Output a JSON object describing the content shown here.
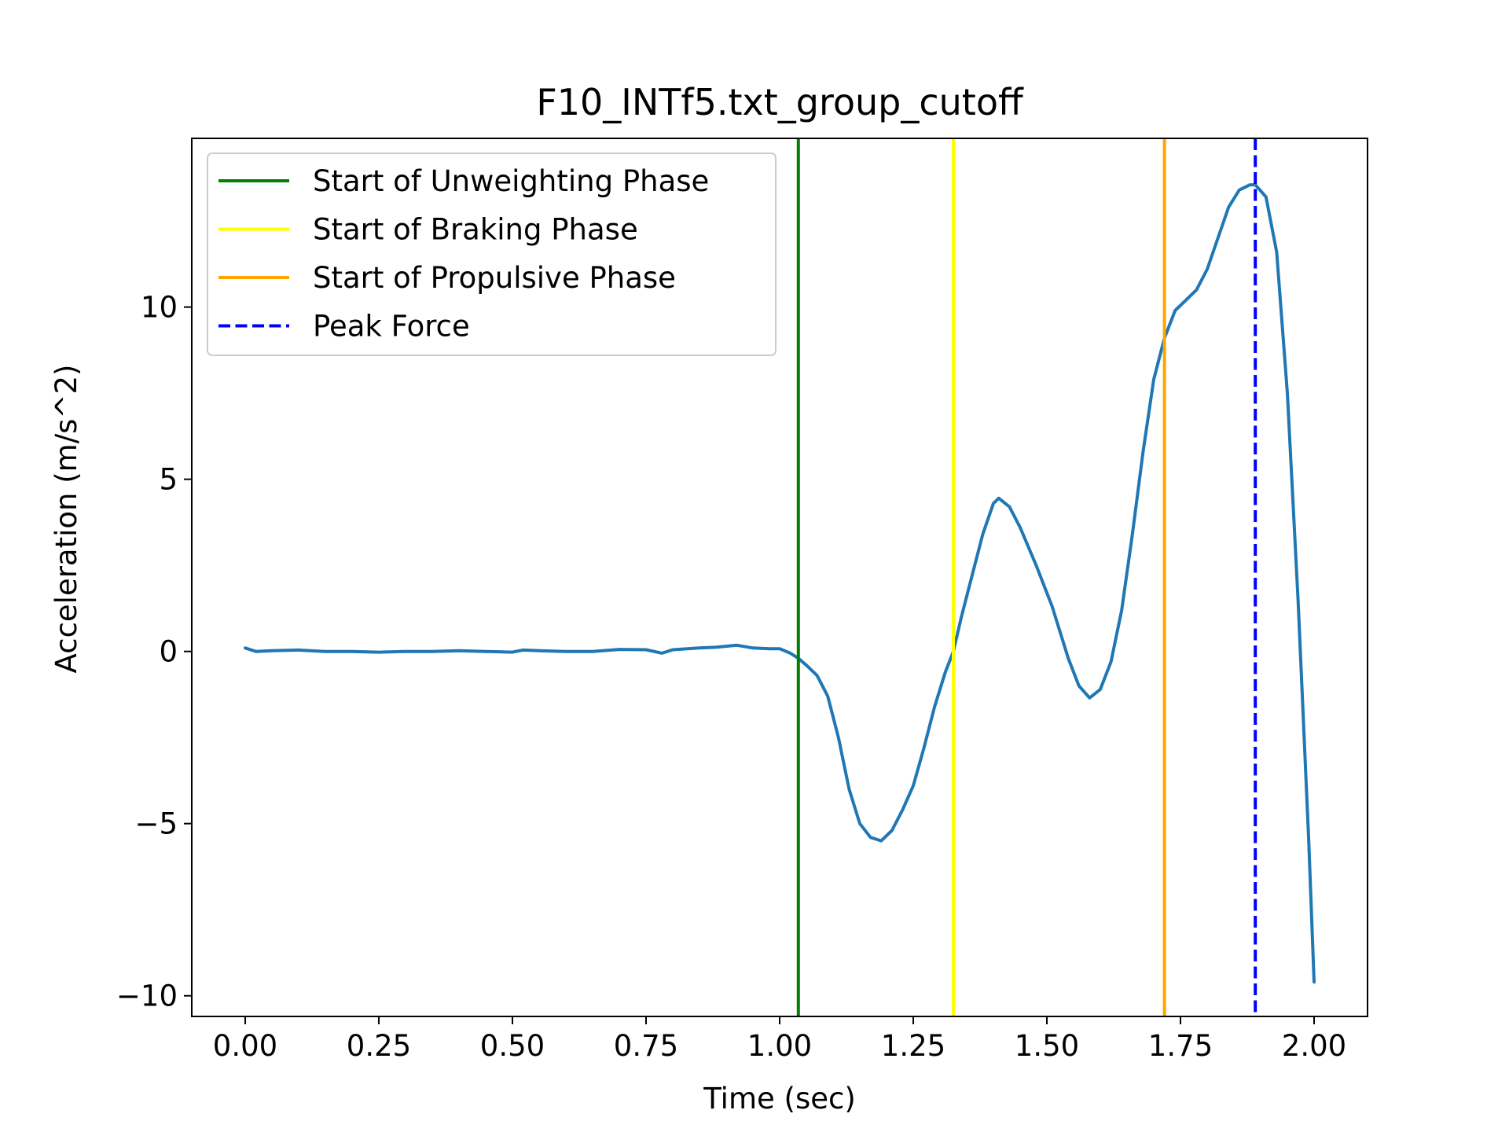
{
  "chart_data": {
    "type": "line",
    "title": "F10_INTf5.txt_group_cutoff",
    "xlabel": "Time (sec)",
    "ylabel": "Acceleration (m/s^2)",
    "xlim": [
      -0.1,
      2.1
    ],
    "ylim": [
      -10.6,
      14.9
    ],
    "xticks": [
      0.0,
      0.25,
      0.5,
      0.75,
      1.0,
      1.25,
      1.5,
      1.75,
      2.0
    ],
    "xtick_labels": [
      "0.00",
      "0.25",
      "0.50",
      "0.75",
      "1.00",
      "1.25",
      "1.50",
      "1.75",
      "2.00"
    ],
    "yticks": [
      -10,
      -5,
      0,
      5,
      10
    ],
    "ytick_labels": [
      "−10",
      "−5",
      "0",
      "5",
      "10"
    ],
    "grid": false,
    "legend_position": "upper-left",
    "series": [
      {
        "color": "#1f77b4",
        "style": "solid",
        "points": [
          [
            0.0,
            0.1
          ],
          [
            0.02,
            0.0
          ],
          [
            0.05,
            0.02
          ],
          [
            0.1,
            0.04
          ],
          [
            0.15,
            0.0
          ],
          [
            0.2,
            0.0
          ],
          [
            0.25,
            -0.02
          ],
          [
            0.3,
            0.0
          ],
          [
            0.35,
            0.0
          ],
          [
            0.4,
            0.02
          ],
          [
            0.45,
            0.0
          ],
          [
            0.5,
            -0.02
          ],
          [
            0.52,
            0.04
          ],
          [
            0.55,
            0.02
          ],
          [
            0.6,
            0.0
          ],
          [
            0.65,
            0.0
          ],
          [
            0.7,
            0.06
          ],
          [
            0.75,
            0.05
          ],
          [
            0.78,
            -0.05
          ],
          [
            0.8,
            0.05
          ],
          [
            0.85,
            0.1
          ],
          [
            0.88,
            0.12
          ],
          [
            0.92,
            0.18
          ],
          [
            0.95,
            0.1
          ],
          [
            0.98,
            0.08
          ],
          [
            1.0,
            0.08
          ],
          [
            1.02,
            -0.05
          ],
          [
            1.035,
            -0.2
          ],
          [
            1.05,
            -0.4
          ],
          [
            1.07,
            -0.7
          ],
          [
            1.09,
            -1.3
          ],
          [
            1.11,
            -2.5
          ],
          [
            1.13,
            -4.0
          ],
          [
            1.15,
            -5.0
          ],
          [
            1.17,
            -5.4
          ],
          [
            1.19,
            -5.5
          ],
          [
            1.21,
            -5.2
          ],
          [
            1.23,
            -4.6
          ],
          [
            1.25,
            -3.9
          ],
          [
            1.27,
            -2.8
          ],
          [
            1.29,
            -1.6
          ],
          [
            1.31,
            -0.6
          ],
          [
            1.325,
            0.0
          ],
          [
            1.34,
            1.0
          ],
          [
            1.36,
            2.2
          ],
          [
            1.38,
            3.4
          ],
          [
            1.4,
            4.3
          ],
          [
            1.41,
            4.45
          ],
          [
            1.43,
            4.2
          ],
          [
            1.45,
            3.6
          ],
          [
            1.48,
            2.5
          ],
          [
            1.51,
            1.3
          ],
          [
            1.54,
            -0.2
          ],
          [
            1.56,
            -1.0
          ],
          [
            1.58,
            -1.35
          ],
          [
            1.6,
            -1.1
          ],
          [
            1.62,
            -0.3
          ],
          [
            1.64,
            1.2
          ],
          [
            1.66,
            3.4
          ],
          [
            1.68,
            5.8
          ],
          [
            1.7,
            7.9
          ],
          [
            1.72,
            9.1
          ],
          [
            1.74,
            9.9
          ],
          [
            1.76,
            10.2
          ],
          [
            1.78,
            10.5
          ],
          [
            1.8,
            11.1
          ],
          [
            1.82,
            12.0
          ],
          [
            1.84,
            12.9
          ],
          [
            1.86,
            13.4
          ],
          [
            1.88,
            13.55
          ],
          [
            1.89,
            13.55
          ],
          [
            1.91,
            13.2
          ],
          [
            1.93,
            11.6
          ],
          [
            1.95,
            7.5
          ],
          [
            1.97,
            1.5
          ],
          [
            1.99,
            -5.5
          ],
          [
            2.0,
            -9.6
          ]
        ]
      }
    ],
    "vlines": [
      {
        "x": 1.035,
        "color": "#008000",
        "style": "solid",
        "label": "Start of Unweighting Phase"
      },
      {
        "x": 1.325,
        "color": "#ffff00",
        "style": "solid",
        "label": "Start of Braking Phase"
      },
      {
        "x": 1.72,
        "color": "#ffa500",
        "style": "solid",
        "label": "Start of Propulsive Phase"
      },
      {
        "x": 1.89,
        "color": "#0000ff",
        "style": "dashed",
        "label": "Peak Force"
      }
    ]
  }
}
